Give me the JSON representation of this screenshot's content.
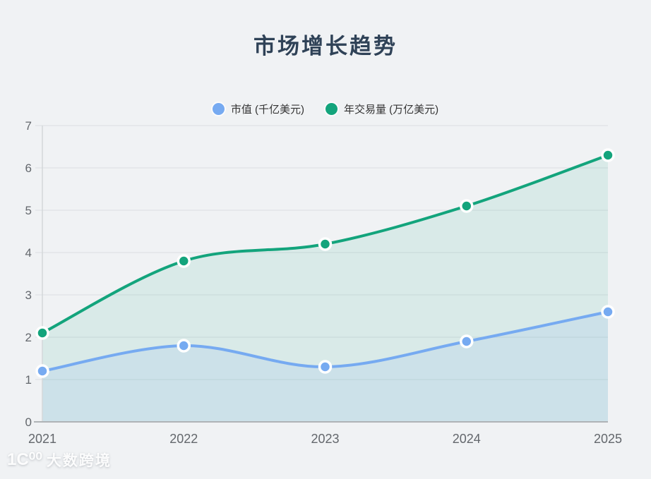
{
  "page": {
    "background": "#f0f2f4"
  },
  "header": {
    "title": "市场增长趋势"
  },
  "legend": [
    {
      "label": "市值 (千亿美元)",
      "color": "#76aaf1"
    },
    {
      "label": "年交易量 (万亿美元)",
      "color": "#13a47c"
    }
  ],
  "chart_data": {
    "type": "area",
    "title": "市场增长趋势",
    "xlabel": "",
    "ylabel": "",
    "categories": [
      "2021",
      "2022",
      "2023",
      "2024",
      "2025"
    ],
    "series": [
      {
        "name": "年交易量 (万亿美元)",
        "color": "#13a47c",
        "fill_alpha": 0.1,
        "values": [
          2.1,
          3.8,
          4.2,
          5.1,
          6.3
        ]
      },
      {
        "name": "市值 (千亿美元)",
        "color": "#76aaf1",
        "fill_alpha": 0.13,
        "values": [
          1.2,
          1.8,
          1.3,
          1.9,
          2.6
        ]
      }
    ],
    "ylim": [
      0,
      7
    ],
    "yticks": [
      0,
      1,
      2,
      3,
      4,
      5,
      6,
      7
    ],
    "grid": true,
    "smooth": true,
    "legend_position": "top",
    "colors": {
      "gridline": "#dfe2e5",
      "y_axis_line": "#d4d7da",
      "x_axis_line": "#afb3b6",
      "tick_label": "#63676c",
      "point_ring": "#ffffff"
    }
  },
  "watermark": {
    "logo": "1C⁰⁰",
    "brand": "大数跨境"
  }
}
